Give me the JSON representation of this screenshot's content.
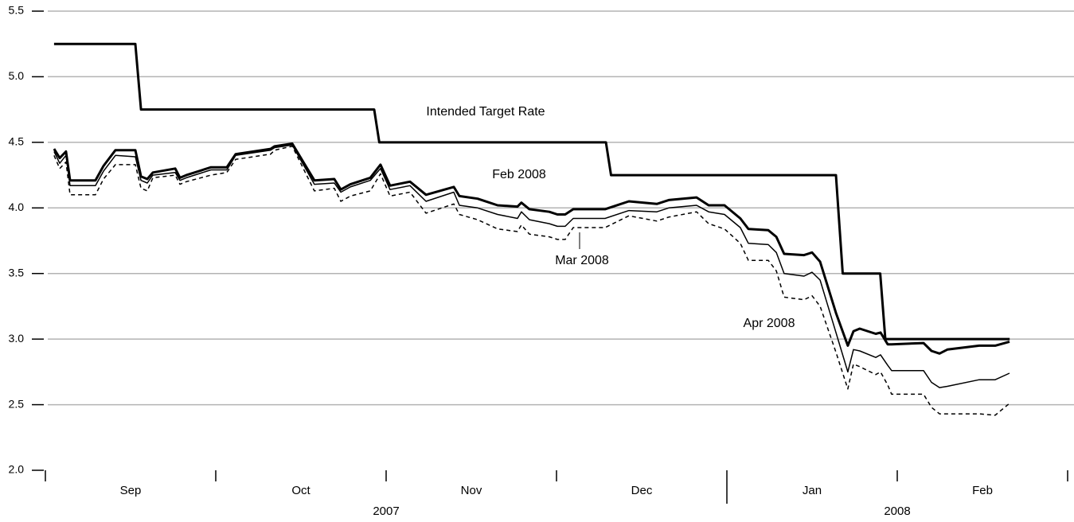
{
  "chart_data": {
    "type": "line",
    "ylim": [
      2.0,
      5.5
    ],
    "yticks": [
      {
        "value": 2.0,
        "label": "2.0"
      },
      {
        "value": 2.5,
        "label": "2.5"
      },
      {
        "value": 3.0,
        "label": "3.0"
      },
      {
        "value": 3.5,
        "label": "3.5"
      },
      {
        "value": 4.0,
        "label": "4.0"
      },
      {
        "value": 4.5,
        "label": "4.5"
      },
      {
        "value": 5.0,
        "label": "5.0"
      },
      {
        "value": 5.5,
        "label": "5.5"
      }
    ],
    "grid": true,
    "xlim": [
      0,
      6
    ],
    "xticks": [
      0,
      1,
      2,
      3,
      4,
      5,
      6
    ],
    "x_categories": [
      "Sep",
      "Oct",
      "Nov",
      "Dec",
      "Jan",
      "Feb"
    ],
    "year_groups": [
      {
        "label": "2007",
        "span": [
          0,
          4
        ]
      },
      {
        "label": "2008",
        "span": [
          4,
          6
        ]
      }
    ],
    "x": [
      0.051,
      0.084,
      0.121,
      0.145,
      0.294,
      0.341,
      0.411,
      0.528,
      0.561,
      0.598,
      0.631,
      0.762,
      0.79,
      0.827,
      0.972,
      1.065,
      1.117,
      1.322,
      1.346,
      1.449,
      1.579,
      1.696,
      1.734,
      1.79,
      1.907,
      1.967,
      2.023,
      2.14,
      2.234,
      2.397,
      2.43,
      2.537,
      2.654,
      2.771,
      2.794,
      2.841,
      2.958,
      3.005,
      3.051,
      3.098,
      3.285,
      3.425,
      3.589,
      3.659,
      3.822,
      3.893,
      3.986,
      4.079,
      4.126,
      4.243,
      4.29,
      4.336,
      4.453,
      4.5,
      4.547,
      4.64,
      4.71,
      4.743,
      4.78,
      4.874,
      4.902,
      4.944,
      4.967,
      5.154,
      5.201,
      5.248,
      5.294,
      5.481,
      5.575,
      5.659
    ],
    "series": [
      {
        "name": "Intended Target Rate",
        "color": "#000000",
        "width": 3,
        "dash": "solid",
        "x": [
          0.051,
          0.528,
          0.561,
          1.93,
          1.96,
          3.29,
          3.32,
          4.64,
          4.68,
          4.9,
          4.93,
          5.66
        ],
        "values": [
          5.25,
          5.25,
          4.75,
          4.75,
          4.5,
          4.5,
          4.25,
          4.25,
          3.5,
          3.5,
          3.0,
          3.0
        ]
      },
      {
        "name": "Feb 2008",
        "color": "#000000",
        "width": 3,
        "dash": "solid",
        "values": [
          4.45,
          4.38,
          4.43,
          4.21,
          4.21,
          4.32,
          4.44,
          4.44,
          4.24,
          4.22,
          4.27,
          4.3,
          4.23,
          4.25,
          4.31,
          4.31,
          4.41,
          4.45,
          4.47,
          4.49,
          4.21,
          4.22,
          4.14,
          4.18,
          4.23,
          4.33,
          4.17,
          4.2,
          4.1,
          4.16,
          4.09,
          4.07,
          4.02,
          4.01,
          4.04,
          3.99,
          3.97,
          3.95,
          3.95,
          3.99,
          3.99,
          4.05,
          4.03,
          4.06,
          4.08,
          4.02,
          4.02,
          3.92,
          3.84,
          3.83,
          3.78,
          3.65,
          3.64,
          3.66,
          3.59,
          3.2,
          2.95,
          3.06,
          3.08,
          3.04,
          3.05,
          2.96,
          2.96,
          2.97,
          2.91,
          2.89,
          2.92,
          2.95,
          2.95,
          2.98
        ]
      },
      {
        "name": "Mar 2008",
        "color": "#000000",
        "width": 1.5,
        "dash": "solid",
        "values": [
          4.43,
          4.34,
          4.4,
          4.17,
          4.17,
          4.28,
          4.4,
          4.39,
          4.21,
          4.19,
          4.25,
          4.27,
          4.21,
          4.23,
          4.29,
          4.29,
          4.4,
          4.44,
          4.46,
          4.48,
          4.18,
          4.19,
          4.12,
          4.16,
          4.21,
          4.3,
          4.14,
          4.17,
          4.05,
          4.12,
          4.02,
          4.0,
          3.95,
          3.92,
          3.97,
          3.91,
          3.88,
          3.86,
          3.86,
          3.92,
          3.92,
          3.98,
          3.97,
          4.0,
          4.02,
          3.97,
          3.95,
          3.85,
          3.73,
          3.72,
          3.66,
          3.5,
          3.48,
          3.51,
          3.45,
          3.05,
          2.75,
          2.92,
          2.91,
          2.86,
          2.88,
          2.8,
          2.76,
          2.76,
          2.67,
          2.63,
          2.64,
          2.69,
          2.69,
          2.74
        ]
      },
      {
        "name": "Apr 2008",
        "color": "#000000",
        "width": 1.5,
        "dash": "dashed",
        "values": [
          4.4,
          4.3,
          4.35,
          4.1,
          4.1,
          4.22,
          4.33,
          4.33,
          4.15,
          4.13,
          4.23,
          4.25,
          4.18,
          4.2,
          4.25,
          4.27,
          4.37,
          4.41,
          4.44,
          4.47,
          4.13,
          4.15,
          4.05,
          4.09,
          4.13,
          4.26,
          4.09,
          4.12,
          3.96,
          4.03,
          3.95,
          3.91,
          3.84,
          3.82,
          3.87,
          3.8,
          3.78,
          3.76,
          3.76,
          3.85,
          3.85,
          3.94,
          3.9,
          3.93,
          3.97,
          3.88,
          3.84,
          3.73,
          3.6,
          3.6,
          3.52,
          3.32,
          3.3,
          3.33,
          3.25,
          2.9,
          2.62,
          2.81,
          2.79,
          2.73,
          2.75,
          2.65,
          2.58,
          2.58,
          2.48,
          2.43,
          2.43,
          2.43,
          2.42,
          2.51
        ]
      }
    ]
  }
}
